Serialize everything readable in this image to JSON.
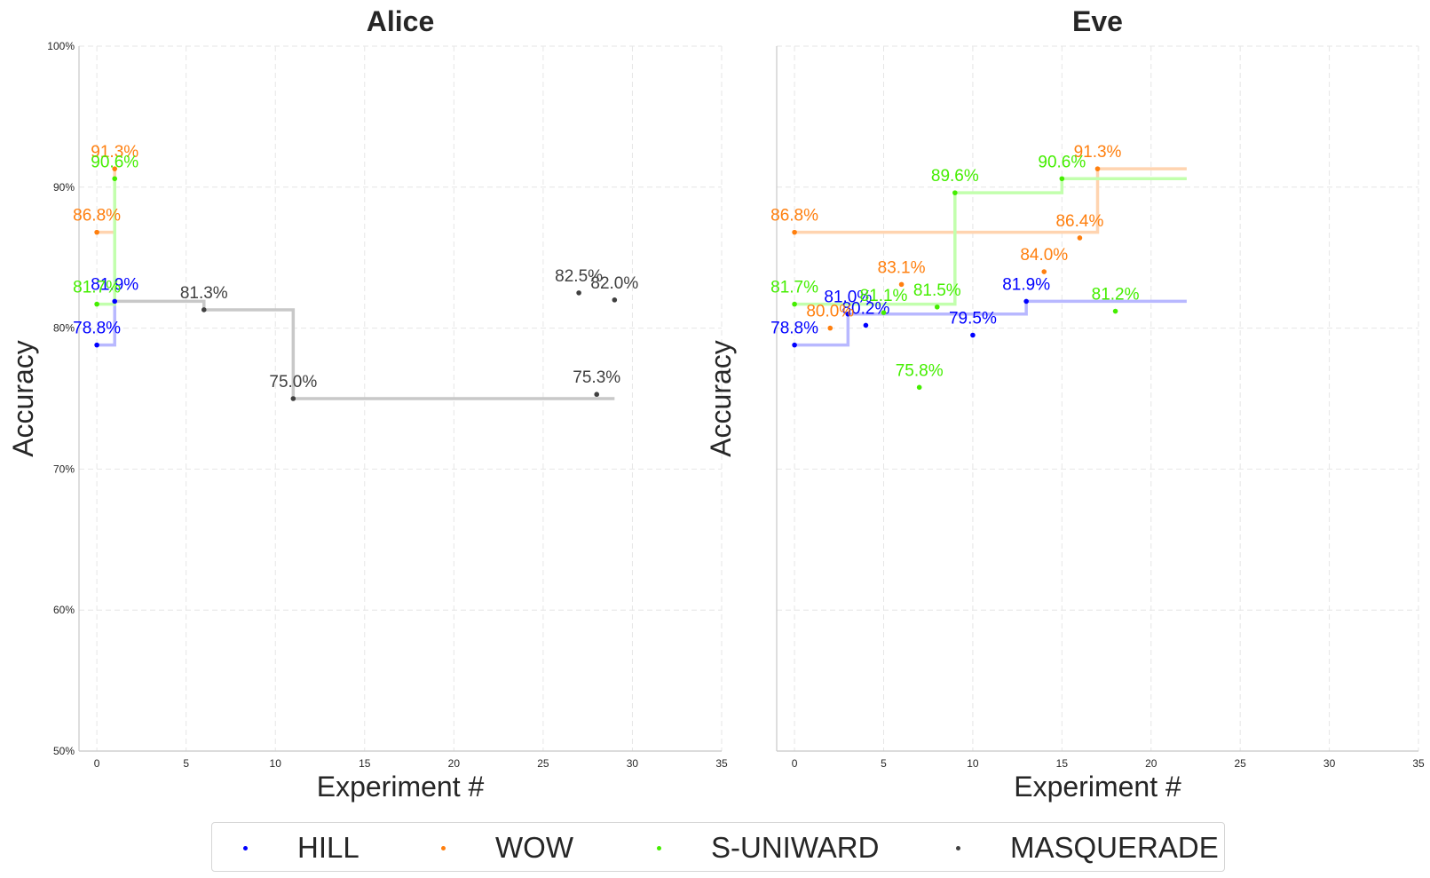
{
  "chart_data": [
    {
      "type": "scatter",
      "title": "Alice",
      "xlabel": "Experiment #",
      "ylabel": "Accuracy",
      "xlim": [
        -1,
        35
      ],
      "ylim": [
        50,
        100
      ],
      "xticks": [
        "0",
        "5",
        "10",
        "15",
        "20",
        "25",
        "30",
        "35"
      ],
      "yticks": [
        "50%",
        "60%",
        "70%",
        "80%",
        "90%",
        "100%"
      ],
      "grid": true,
      "series": [
        {
          "name": "HILL",
          "points": [
            {
              "x": 0,
              "y": 78.8,
              "label": "78.8%"
            },
            {
              "x": 1,
              "y": 81.9,
              "label": "81.9%"
            }
          ],
          "step": {
            "x_end": 1
          }
        },
        {
          "name": "WOW",
          "points": [
            {
              "x": 0,
              "y": 86.8,
              "label": "86.8%"
            },
            {
              "x": 1,
              "y": 91.3,
              "label": "91.3%"
            }
          ],
          "step": {
            "x_end": 1
          }
        },
        {
          "name": "S-UNIWARD",
          "points": [
            {
              "x": 0,
              "y": 81.7,
              "label": "81.7%"
            },
            {
              "x": 1,
              "y": 90.6,
              "label": "90.6%"
            }
          ],
          "step": {
            "x_end": 1
          }
        },
        {
          "name": "MASQUERADE",
          "points": [
            {
              "x": 1,
              "y": 81.9,
              "label": ""
            },
            {
              "x": 6,
              "y": 81.3,
              "label": "81.3%"
            },
            {
              "x": 11,
              "y": 75.0,
              "label": "75.0%"
            },
            {
              "x": 27,
              "y": 82.5,
              "label": "82.5%"
            },
            {
              "x": 28,
              "y": 75.3,
              "label": "75.3%"
            },
            {
              "x": 29,
              "y": 82.0,
              "label": "82.0%"
            }
          ],
          "step": {
            "x_end": 29,
            "x_start": 1,
            "start_y": 81.9
          }
        }
      ]
    },
    {
      "type": "scatter",
      "title": "Eve",
      "xlabel": "Experiment #",
      "ylabel": "Accuracy",
      "xlim": [
        -1,
        35
      ],
      "ylim": [
        50,
        100
      ],
      "xticks": [
        "0",
        "5",
        "10",
        "15",
        "20",
        "25",
        "30",
        "35"
      ],
      "yticks": [],
      "grid": true,
      "series": [
        {
          "name": "HILL",
          "points": [
            {
              "x": 0,
              "y": 78.8,
              "label": "78.8%"
            },
            {
              "x": 3,
              "y": 81.0,
              "label": "81.0%"
            },
            {
              "x": 4,
              "y": 80.2,
              "label": "80.2%"
            },
            {
              "x": 10,
              "y": 79.5,
              "label": "79.5%"
            },
            {
              "x": 13,
              "y": 81.9,
              "label": "81.9%"
            }
          ],
          "step": {
            "x_end": 22
          }
        },
        {
          "name": "WOW",
          "points": [
            {
              "x": 0,
              "y": 86.8,
              "label": "86.8%"
            },
            {
              "x": 2,
              "y": 80.0,
              "label": "80.0%"
            },
            {
              "x": 6,
              "y": 83.1,
              "label": "83.1%"
            },
            {
              "x": 14,
              "y": 84.0,
              "label": "84.0%"
            },
            {
              "x": 16,
              "y": 86.4,
              "label": "86.4%"
            },
            {
              "x": 17,
              "y": 91.3,
              "label": "91.3%"
            }
          ],
          "step": {
            "x_end": 22
          }
        },
        {
          "name": "S-UNIWARD",
          "points": [
            {
              "x": 0,
              "y": 81.7,
              "label": "81.7%"
            },
            {
              "x": 5,
              "y": 81.1,
              "label": "81.1%"
            },
            {
              "x": 7,
              "y": 75.8,
              "label": "75.8%"
            },
            {
              "x": 8,
              "y": 81.5,
              "label": "81.5%"
            },
            {
              "x": 9,
              "y": 89.6,
              "label": "89.6%"
            },
            {
              "x": 15,
              "y": 90.6,
              "label": "90.6%"
            },
            {
              "x": 18,
              "y": 81.2,
              "label": "81.2%"
            }
          ],
          "step": {
            "x_end": 22
          }
        }
      ]
    }
  ],
  "legend": {
    "placement": "bottom-center",
    "items": [
      {
        "name": "HILL",
        "color": "#0000ff"
      },
      {
        "name": "WOW",
        "color": "#ff7f0e"
      },
      {
        "name": "S-UNIWARD",
        "color": "#44ee00"
      },
      {
        "name": "MASQUERADE",
        "color": "#404040"
      }
    ]
  },
  "colors": {
    "HILL": "#0000ff",
    "WOW": "#ff7f0e",
    "S-UNIWARD": "#44ee00",
    "MASQUERADE": "#404040",
    "HILL_step": "#b8b8ff",
    "WOW_step": "#ffd4b0",
    "S-UNIWARD_step": "#c2ffad",
    "MASQUERADE_step": "#c8c8c8"
  }
}
